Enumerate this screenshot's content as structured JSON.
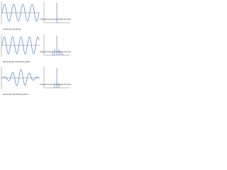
{
  "panels": [
    {
      "label": "Transformed from Digital Counter",
      "caption": "Coherent sampling"
    },
    {
      "label": "Transformed from Digital Counter",
      "caption": "Rectangular windowing effect"
    },
    {
      "label": "Transformed from Digital Counter",
      "caption": "Hamming windowing effect"
    }
  ]
}
